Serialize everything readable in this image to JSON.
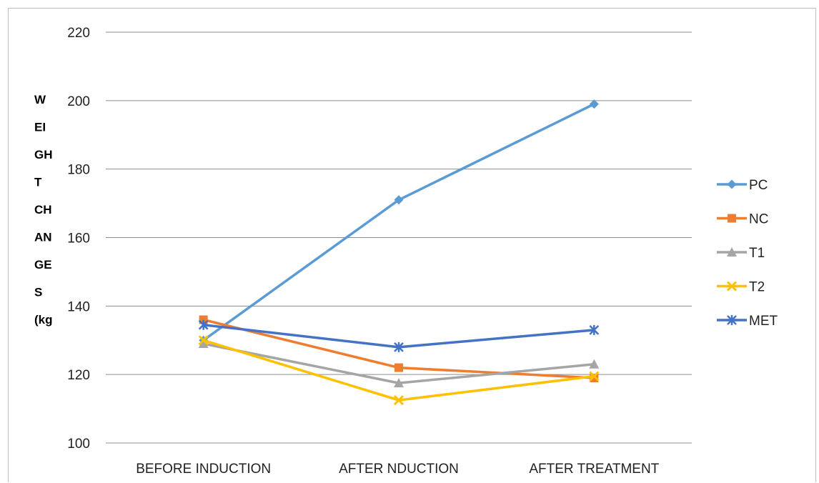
{
  "chart_data": {
    "type": "line",
    "categories": [
      "BEFORE INDUCTION",
      "AFTER NDUCTION",
      "AFTER TREATMENT"
    ],
    "ylim": [
      100,
      220
    ],
    "yticks": [
      100,
      120,
      140,
      160,
      180,
      200,
      220
    ],
    "ytick_labels": [
      "100",
      "120",
      "140",
      "160",
      "180",
      "200",
      "220"
    ],
    "ylabel_lines": [
      "W",
      "EI",
      "GH",
      "T",
      "CH",
      "AN",
      "GE",
      "S",
      "(kg"
    ],
    "grid": true,
    "legend_position": "right",
    "series": [
      {
        "name": "PC",
        "values": [
          130,
          171,
          199
        ],
        "color": "#5b9bd5",
        "marker": "diamond"
      },
      {
        "name": "NC",
        "values": [
          136,
          122,
          119
        ],
        "color": "#ed7d31",
        "marker": "square"
      },
      {
        "name": "T1",
        "values": [
          129,
          117.5,
          123
        ],
        "color": "#a5a5a5",
        "marker": "triangle"
      },
      {
        "name": "T2",
        "values": [
          130,
          112.5,
          119.5
        ],
        "color": "#ffc000",
        "marker": "x"
      },
      {
        "name": "MET",
        "values": [
          134.5,
          128,
          133
        ],
        "color": "#4472c4",
        "marker": "star"
      }
    ]
  }
}
